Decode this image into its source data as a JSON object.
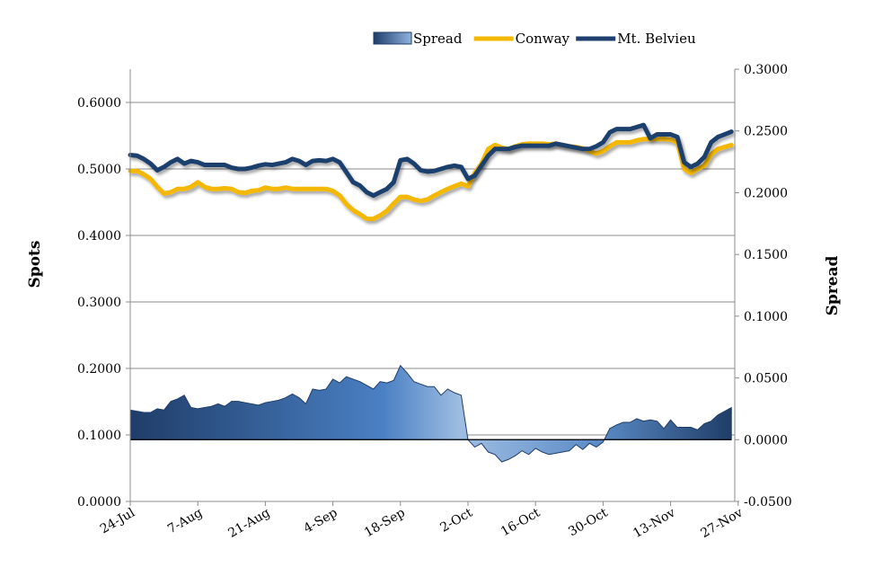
{
  "chart_data": {
    "type": "line",
    "title": "",
    "xlabel": "",
    "ylabel": "Spots",
    "y2label": "Spread",
    "ylim": [
      0,
      0.65
    ],
    "y2lim": [
      -0.05,
      0.3
    ],
    "grid": true,
    "legend_position": "top-right",
    "yticks": [
      "0.0000",
      "0.1000",
      "0.2000",
      "0.3000",
      "0.4000",
      "0.5000",
      "0.6000"
    ],
    "y2ticks": [
      "-0.0500",
      "0.0000",
      "0.0500",
      "0.1000",
      "0.1500",
      "0.2000",
      "0.2500",
      "0.3000"
    ],
    "xticks": [
      "24-Jul",
      "7-Aug",
      "21-Aug",
      "4-Sep",
      "18-Sep",
      "2-Oct",
      "16-Oct",
      "30-Oct",
      "13-Nov",
      "27-Nov"
    ],
    "x": [
      0,
      1,
      2,
      3,
      4,
      5,
      6,
      7,
      8,
      9,
      10,
      11,
      12,
      13,
      14,
      15,
      16,
      17,
      18,
      19,
      20,
      21,
      22,
      23,
      24,
      25,
      26,
      27,
      28,
      29,
      30,
      31,
      32,
      33,
      34,
      35,
      36,
      37,
      38,
      39,
      40,
      41,
      42,
      43,
      44,
      45,
      46,
      47,
      48,
      49,
      50,
      51,
      52,
      53,
      54,
      55,
      56,
      57,
      58,
      59,
      60,
      61,
      62,
      63,
      64,
      65,
      66,
      67,
      68,
      69,
      70,
      71,
      72,
      73,
      74,
      75,
      76,
      77,
      78,
      79,
      80,
      81,
      82,
      83,
      84,
      85,
      86,
      87,
      88,
      89
    ],
    "series": [
      {
        "name": "Spread",
        "axis": "right",
        "style": "area",
        "color": "#4a7fc0",
        "values": [
          0.024,
          0.023,
          0.022,
          0.022,
          0.025,
          0.024,
          0.031,
          0.033,
          0.036,
          0.026,
          0.025,
          0.026,
          0.027,
          0.029,
          0.027,
          0.031,
          0.031,
          0.03,
          0.029,
          0.028,
          0.03,
          0.031,
          0.032,
          0.034,
          0.037,
          0.034,
          0.029,
          0.041,
          0.04,
          0.041,
          0.049,
          0.046,
          0.051,
          0.049,
          0.047,
          0.044,
          0.041,
          0.047,
          0.046,
          0.048,
          0.06,
          0.054,
          0.047,
          0.045,
          0.043,
          0.043,
          0.036,
          0.041,
          0.038,
          0.036,
          0.0,
          -0.006,
          -0.003,
          -0.01,
          -0.012,
          -0.018,
          -0.016,
          -0.013,
          -0.009,
          -0.012,
          -0.007,
          -0.01,
          -0.012,
          -0.011,
          -0.01,
          -0.009,
          -0.004,
          -0.008,
          -0.003,
          -0.006,
          -0.002,
          0.009,
          0.012,
          0.014,
          0.014,
          0.017,
          0.015,
          0.016,
          0.015,
          0.009,
          0.016,
          0.01,
          0.01,
          0.01,
          0.008,
          0.013,
          0.015,
          0.02,
          0.023,
          0.026
        ]
      },
      {
        "name": "Conway",
        "axis": "left",
        "style": "line",
        "color": "#f5b800",
        "values": [
          0.497,
          0.497,
          0.492,
          0.485,
          0.473,
          0.463,
          0.465,
          0.47,
          0.47,
          0.473,
          0.48,
          0.473,
          0.47,
          0.47,
          0.471,
          0.47,
          0.465,
          0.464,
          0.467,
          0.468,
          0.472,
          0.47,
          0.47,
          0.472,
          0.47,
          0.47,
          0.47,
          0.47,
          0.47,
          0.47,
          0.467,
          0.46,
          0.447,
          0.438,
          0.432,
          0.425,
          0.425,
          0.43,
          0.437,
          0.448,
          0.458,
          0.458,
          0.454,
          0.452,
          0.454,
          0.46,
          0.465,
          0.47,
          0.474,
          0.478,
          0.474,
          0.494,
          0.508,
          0.53,
          0.536,
          0.532,
          0.53,
          0.534,
          0.537,
          0.538,
          0.538,
          0.538,
          0.537,
          0.538,
          0.536,
          0.534,
          0.533,
          0.531,
          0.527,
          0.523,
          0.527,
          0.534,
          0.54,
          0.54,
          0.54,
          0.543,
          0.545,
          0.545,
          0.545,
          0.545,
          0.544,
          0.54,
          0.5,
          0.494,
          0.5,
          0.505,
          0.522,
          0.53,
          0.533,
          0.536
        ]
      },
      {
        "name": "Mt. Belvieu",
        "axis": "left",
        "style": "line",
        "color": "#1f3f6e",
        "values": [
          0.521,
          0.52,
          0.515,
          0.508,
          0.498,
          0.503,
          0.51,
          0.515,
          0.508,
          0.512,
          0.51,
          0.506,
          0.506,
          0.506,
          0.506,
          0.502,
          0.5,
          0.5,
          0.502,
          0.505,
          0.507,
          0.506,
          0.508,
          0.51,
          0.515,
          0.512,
          0.506,
          0.512,
          0.513,
          0.512,
          0.515,
          0.51,
          0.495,
          0.48,
          0.475,
          0.465,
          0.46,
          0.465,
          0.47,
          0.48,
          0.513,
          0.515,
          0.508,
          0.498,
          0.496,
          0.497,
          0.5,
          0.503,
          0.505,
          0.503,
          0.485,
          0.49,
          0.505,
          0.52,
          0.53,
          0.53,
          0.53,
          0.533,
          0.535,
          0.535,
          0.535,
          0.535,
          0.535,
          0.538,
          0.536,
          0.534,
          0.532,
          0.53,
          0.53,
          0.534,
          0.54,
          0.555,
          0.56,
          0.56,
          0.56,
          0.563,
          0.566,
          0.546,
          0.552,
          0.552,
          0.552,
          0.548,
          0.51,
          0.503,
          0.508,
          0.518,
          0.54,
          0.548,
          0.552,
          0.556
        ]
      }
    ]
  }
}
